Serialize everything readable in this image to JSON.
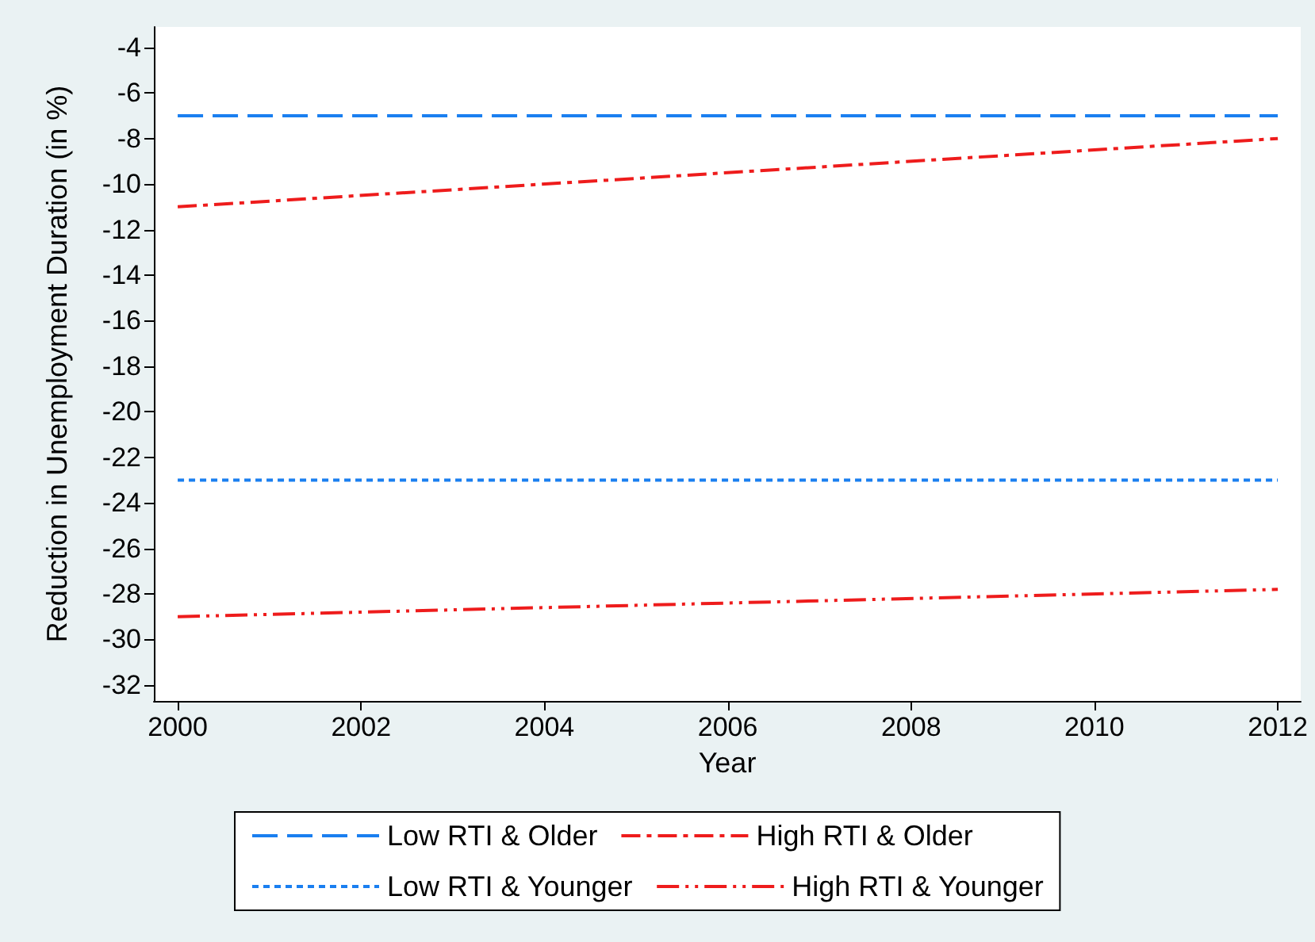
{
  "chart_data": {
    "type": "line",
    "xlabel": "Year",
    "ylabel": "Reduction in Unemployment Duration (in %)",
    "xlim": [
      1999.74,
      2012.25
    ],
    "ylim": [
      -32.7,
      -3.1
    ],
    "xticks": [
      2000,
      2002,
      2004,
      2006,
      2008,
      2010,
      2012
    ],
    "yticks": [
      -4,
      -6,
      -8,
      -10,
      -12,
      -14,
      -16,
      -18,
      -20,
      -22,
      -24,
      -26,
      -28,
      -30,
      -32
    ],
    "x": [
      2000,
      2012
    ],
    "marker": "none",
    "legend": "bottom",
    "series": [
      {
        "name": "Low RTI & Older",
        "color": "#1a7ff0",
        "values": [
          -7,
          -7
        ],
        "line_style": "dashed"
      },
      {
        "name": "High RTI & Older",
        "color": "#ee1c1c",
        "values": [
          -11,
          -8
        ],
        "line_style": "dashdot"
      },
      {
        "name": "Low RTI & Younger",
        "color": "#1a7ff0",
        "values": [
          -23,
          -23
        ],
        "line_style": "dotted"
      },
      {
        "name": "High RTI & Younger",
        "color": "#ee1c1c",
        "values": [
          -29,
          -27.8
        ],
        "line_style": "dashdotdot"
      }
    ]
  }
}
